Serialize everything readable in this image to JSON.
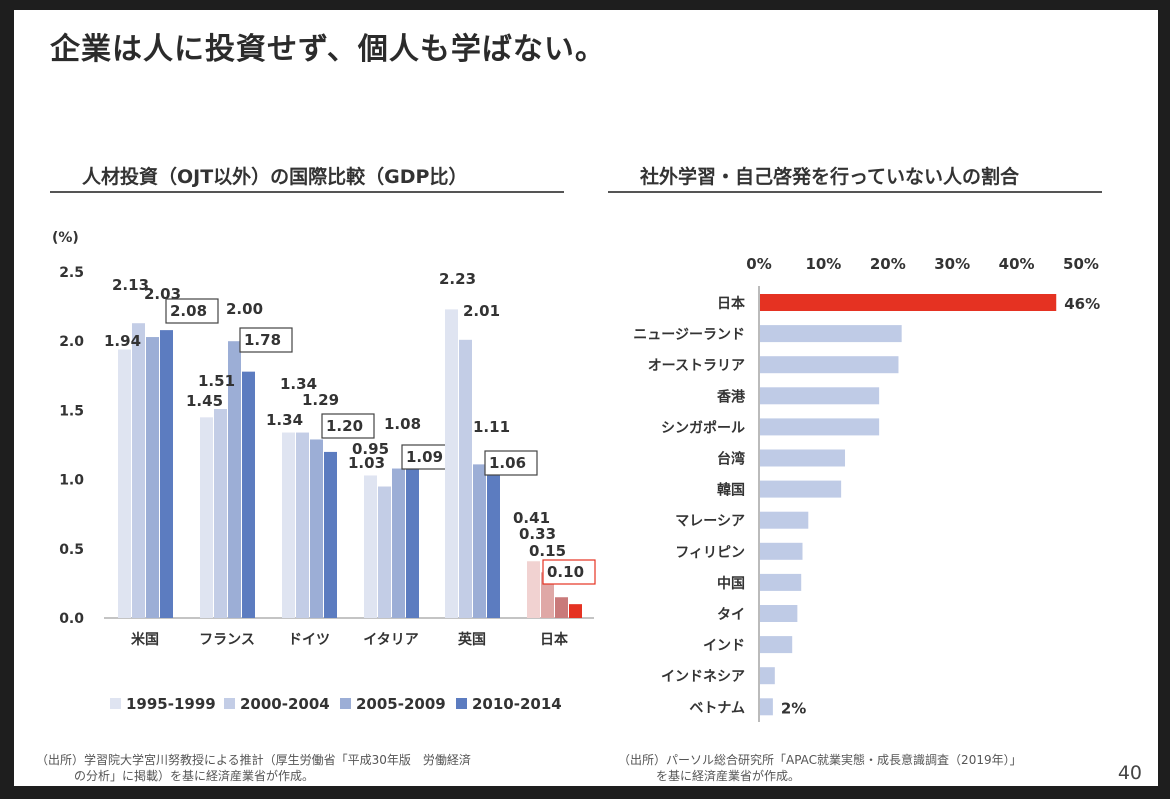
{
  "slide": {
    "title": "企業は人に投資せず、個人も学ばない。",
    "page_number": "40"
  },
  "colors": {
    "s1": "#dfe4f1",
    "s2": "#c3cde6",
    "s3": "#9caed6",
    "s4": "#5c7cc0",
    "japan1": "#f1d2d1",
    "japan2": "#dfa8a6",
    "japan3": "#c97a7a",
    "japan4": "#e53222",
    "bar_light": "#bfcbe6",
    "bar_red": "#e53222"
  },
  "chart_data": [
    {
      "type": "bar",
      "title": "人材投資（OJT以外）の国際比較（GDP比）",
      "unit_label": "(%)",
      "ylim": [
        0,
        2.5
      ],
      "yticks": [
        "0.0",
        "0.5",
        "1.0",
        "1.5",
        "2.0",
        "2.5"
      ],
      "categories": [
        "米国",
        "フランス",
        "ドイツ",
        "イタリア",
        "英国",
        "日本"
      ],
      "series": [
        {
          "name": "1995-1999",
          "values": [
            1.94,
            1.45,
            1.34,
            1.03,
            2.23,
            0.41
          ]
        },
        {
          "name": "2000-2004",
          "values": [
            2.13,
            1.51,
            1.34,
            0.95,
            2.01,
            0.33
          ]
        },
        {
          "name": "2005-2009",
          "values": [
            2.03,
            2.0,
            1.29,
            1.08,
            1.11,
            0.15
          ]
        },
        {
          "name": "2010-2014",
          "values": [
            2.08,
            1.78,
            1.2,
            1.09,
            1.06,
            0.1
          ]
        }
      ],
      "labels": [
        [
          "1.94",
          "2.13",
          "2.03",
          "2.08"
        ],
        [
          "1.45",
          "1.51",
          "2.00",
          "1.78"
        ],
        [
          "1.34",
          "1.34",
          "1.29",
          "1.20"
        ],
        [
          "1.03",
          "0.95",
          "1.08",
          "1.09"
        ],
        [
          "2.23",
          "2.01",
          "1.11",
          "1.06"
        ],
        [
          "0.41",
          "0.33",
          "0.15",
          "0.10"
        ]
      ],
      "legend_position": "bottom"
    },
    {
      "type": "bar",
      "orientation": "horizontal",
      "title": "社外学習・自己啓発を行っていない人の割合",
      "xlim": [
        0,
        50
      ],
      "xticks": [
        "0%",
        "10%",
        "20%",
        "30%",
        "40%",
        "50%"
      ],
      "categories": [
        "日本",
        "ニュージーランド",
        "オーストラリア",
        "香港",
        "シンガポール",
        "台湾",
        "韓国",
        "マレーシア",
        "フィリピン",
        "中国",
        "タイ",
        "インド",
        "インドネシア",
        "ベトナム"
      ],
      "values": [
        46,
        22,
        21.5,
        18.5,
        18.5,
        13.2,
        12.6,
        7.5,
        6.6,
        6.4,
        5.8,
        5.0,
        2.3,
        2.0
      ],
      "value_labels": {
        "first": "46%",
        "last": "2%"
      }
    }
  ],
  "sources": {
    "left_line1": "（出所）学習院大学宮川努教授による推計（厚生労働省「平成30年版　労働経済",
    "left_line2": "の分析」に掲載）を基に経済産業省が作成。",
    "right_line1": "（出所）パーソル総合研究所「APAC就業実態・成長意識調査（2019年）」",
    "right_line2": "を基に経済産業省が作成。"
  }
}
